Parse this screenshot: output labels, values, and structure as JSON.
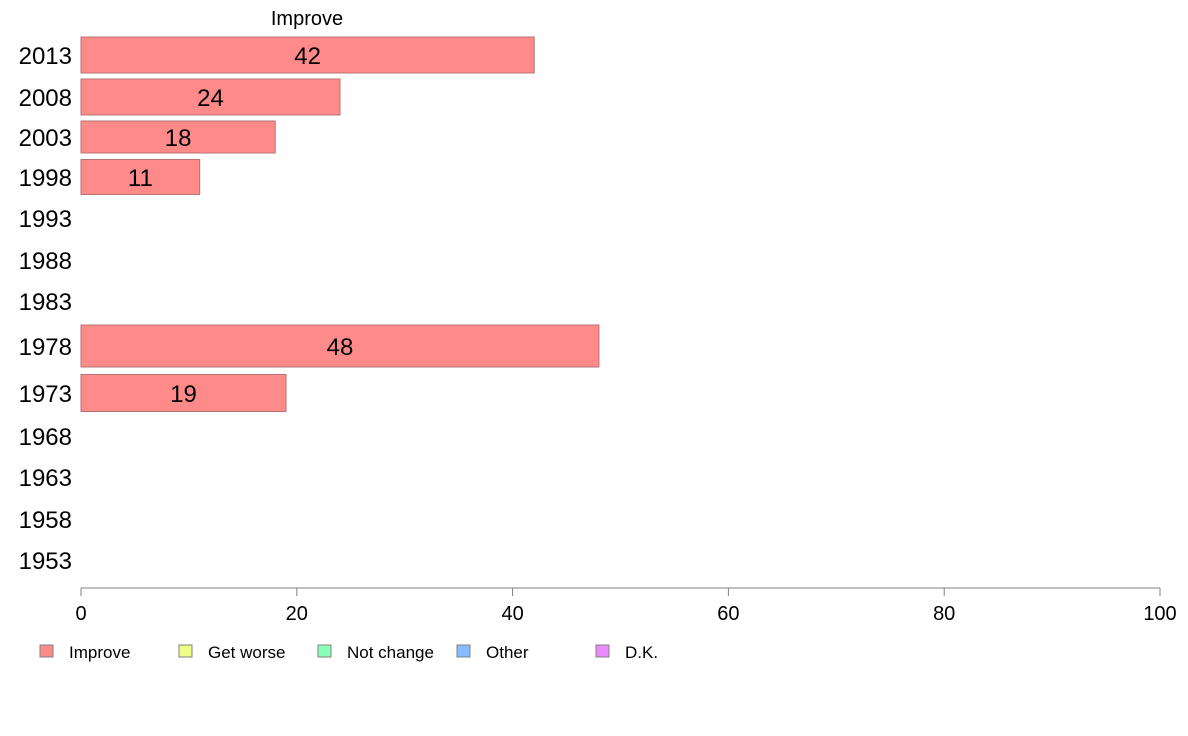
{
  "chart_data": {
    "type": "bar",
    "orientation": "horizontal",
    "title": "Improve",
    "categories": [
      "2013",
      "2008",
      "2003",
      "1998",
      "1993",
      "1988",
      "1983",
      "1978",
      "1973",
      "1968",
      "1963",
      "1958",
      "1953"
    ],
    "series": [
      {
        "name": "Improve",
        "color": "#ff8a8a",
        "values": [
          42,
          24,
          18,
          11,
          null,
          null,
          null,
          48,
          19,
          null,
          null,
          null,
          null
        ]
      }
    ],
    "xlim": [
      0,
      100
    ],
    "xticks": [
      "0",
      "20",
      "40",
      "60",
      "80",
      "100"
    ],
    "grid": false,
    "legend_position": "bottom-left",
    "legend": [
      {
        "label": "Improve",
        "color": "#ff8a8a"
      },
      {
        "label": "Get worse",
        "color": "#eeff88"
      },
      {
        "label": "Not change",
        "color": "#88ffbb"
      },
      {
        "label": "Other",
        "color": "#88bbff"
      },
      {
        "label": "D.K.",
        "color": "#ee88ff"
      }
    ]
  }
}
